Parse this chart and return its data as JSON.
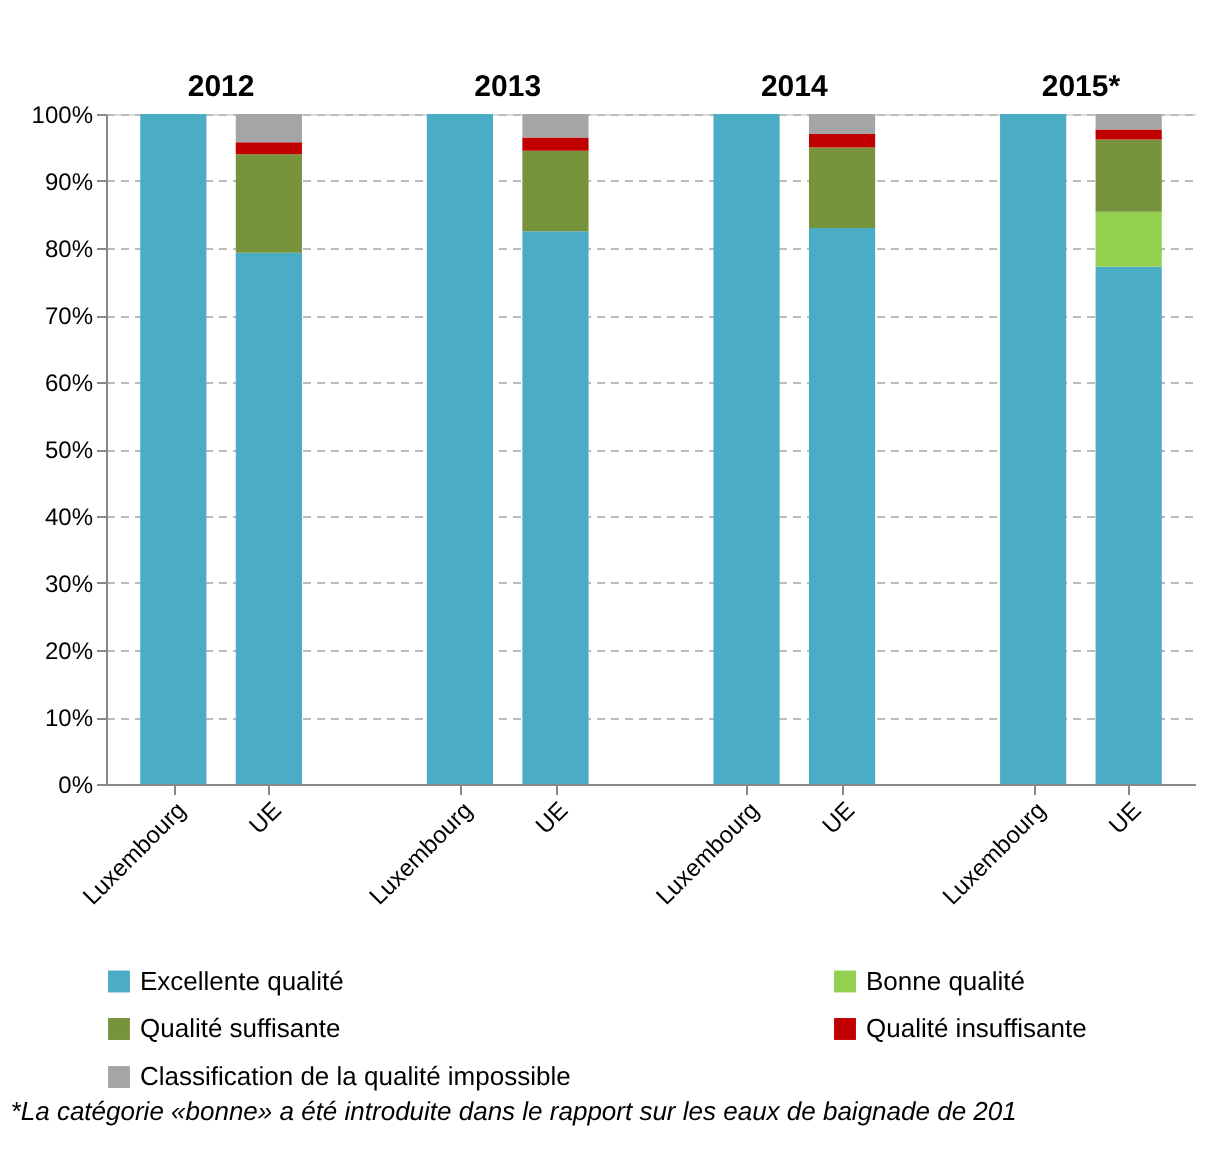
{
  "chart_data": {
    "type": "bar",
    "stacked": true,
    "categories": [
      "Luxembourg",
      "UE",
      null,
      "Luxembourg",
      "UE",
      null,
      "Luxembourg",
      "UE",
      null,
      "Luxembourg",
      "UE"
    ],
    "series": [
      {
        "name": "Excellente qualité",
        "color": "#4bacc6",
        "values": [
          100,
          79.3,
          null,
          100,
          82.5,
          null,
          100,
          83,
          null,
          100,
          77.2
        ]
      },
      {
        "name": "Bonne qualité",
        "color": "#92d050",
        "values": [
          null,
          null,
          null,
          null,
          null,
          null,
          null,
          null,
          null,
          null,
          8.2
        ]
      },
      {
        "name": "Qualité suffisante",
        "color": "#77933c",
        "values": [
          null,
          14.7,
          null,
          null,
          12,
          null,
          null,
          12,
          null,
          null,
          10.8
        ]
      },
      {
        "name": "Qualité insuffisante",
        "color": "#c00000",
        "values": [
          null,
          1.8,
          null,
          null,
          2,
          null,
          null,
          2,
          null,
          null,
          1.5
        ]
      },
      {
        "name": "Classification de la qualité impossible",
        "color": "#a5a5a5",
        "values": [
          null,
          4.2,
          null,
          null,
          3.5,
          null,
          null,
          3,
          null,
          null,
          2.3
        ]
      }
    ],
    "ylim": [
      0,
      100
    ],
    "yticks": [
      {
        "value": 0,
        "label": "0%"
      },
      {
        "value": 10,
        "label": "10%"
      },
      {
        "value": 20,
        "label": "20%"
      },
      {
        "value": 30,
        "label": "30%"
      },
      {
        "value": 40,
        "label": "40%"
      },
      {
        "value": 50,
        "label": "50%"
      },
      {
        "value": 60,
        "label": "60%"
      },
      {
        "value": 70,
        "label": "70%"
      },
      {
        "value": 80,
        "label": "80%"
      },
      {
        "value": 90,
        "label": "90%"
      },
      {
        "value": 100,
        "label": "100%"
      }
    ],
    "grid": "y",
    "legend": "bottom",
    "annotations": [
      "2012",
      "2013",
      "2014",
      "2015*",
      "*La catégorie «bonne» a été introduite dans le rapport sur les eaux de baignade de 201"
    ]
  }
}
